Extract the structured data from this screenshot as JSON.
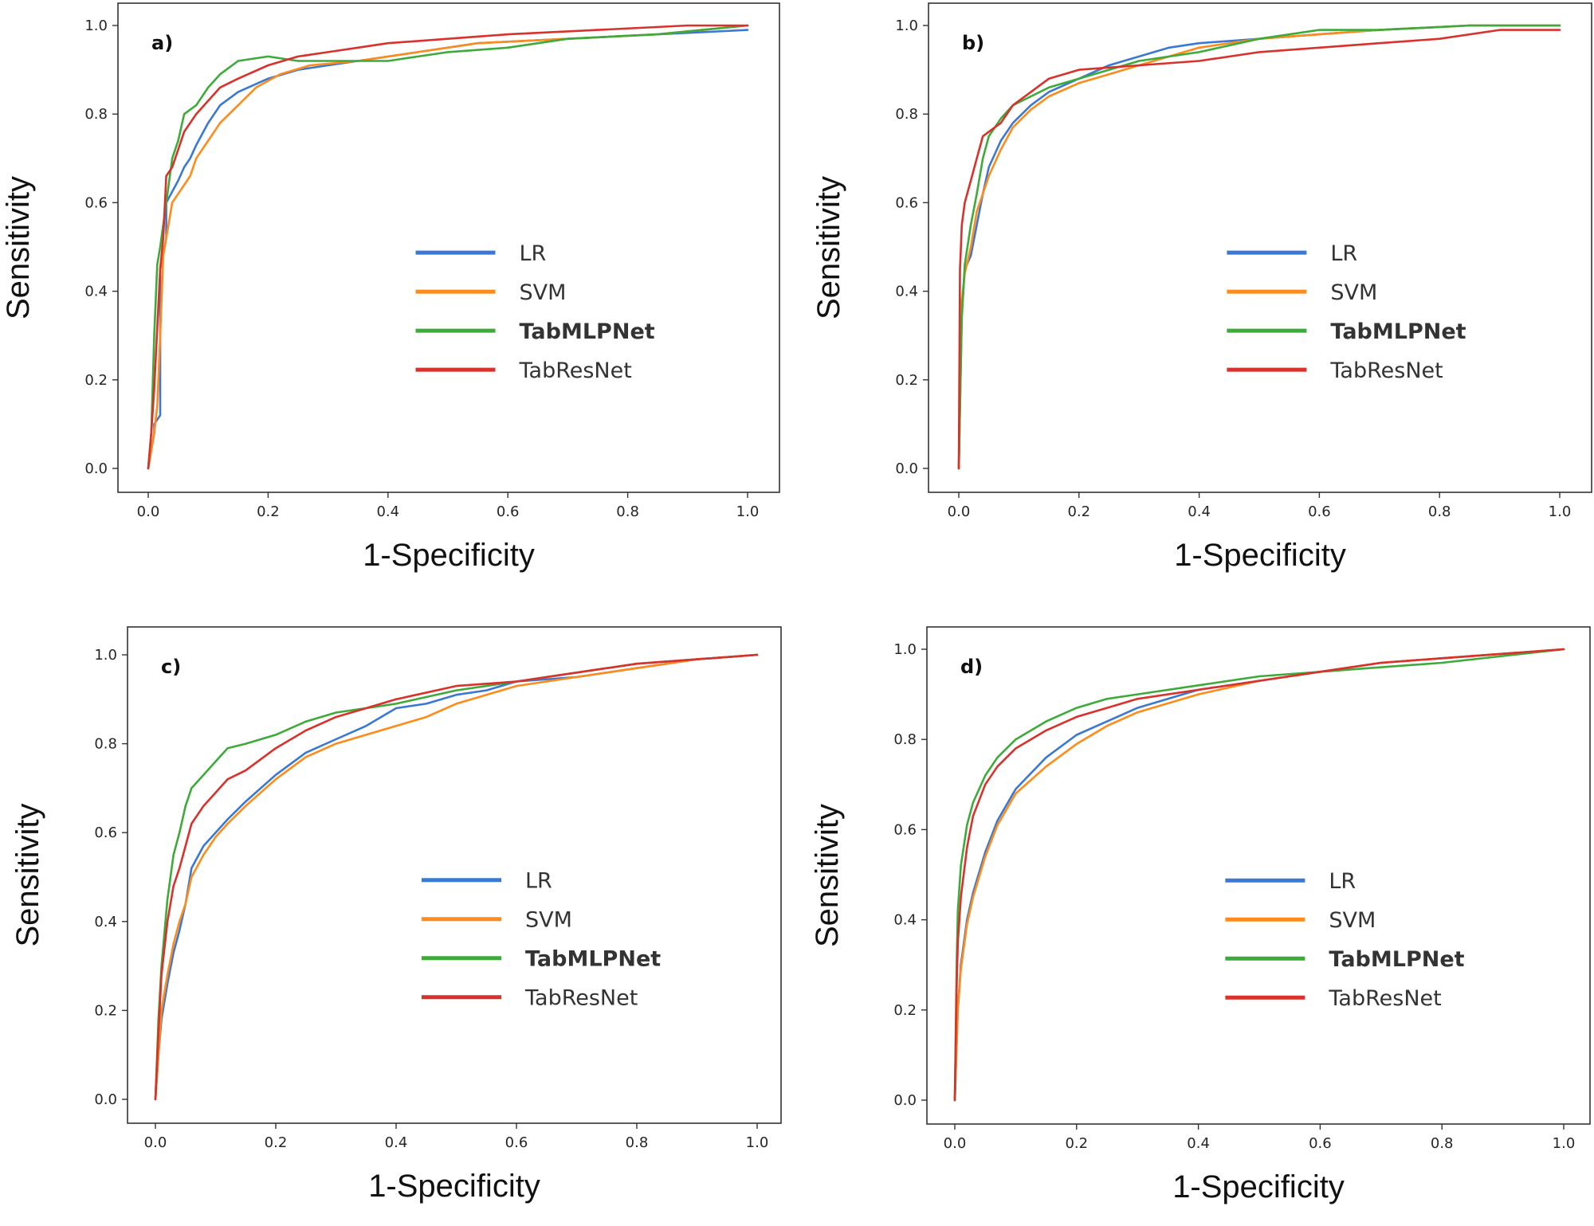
{
  "colors": {
    "LR": "#3a78d4",
    "SVM": "#ff8c1a",
    "TabMLPNet": "#3daa3a",
    "TabResNet": "#d9312b"
  },
  "chart_data": [
    {
      "type": "line",
      "panel_label": "a)",
      "xlabel": "1-Specificity",
      "ylabel": "Sensitivity",
      "xlim": [
        0.0,
        1.0
      ],
      "ylim": [
        0.0,
        1.0
      ],
      "xticks": [
        "0.0",
        "0.2",
        "0.4",
        "0.6",
        "0.8",
        "1.0"
      ],
      "yticks": [
        "0.0",
        "0.2",
        "0.4",
        "0.6",
        "0.8",
        "1.0"
      ],
      "grid": false,
      "legend_position": "lower-right",
      "series": [
        {
          "name": "LR",
          "color_key": "LR",
          "bold": false,
          "x": [
            0,
            0.01,
            0.01,
            0.02,
            0.02,
            0.03,
            0.03,
            0.05,
            0.06,
            0.07,
            0.08,
            0.1,
            0.12,
            0.15,
            0.2,
            0.25,
            0.3,
            0.35,
            0.45,
            0.55,
            0.7,
            0.85,
            1.0
          ],
          "y": [
            0,
            0.08,
            0.1,
            0.12,
            0.45,
            0.52,
            0.6,
            0.65,
            0.68,
            0.7,
            0.73,
            0.78,
            0.82,
            0.85,
            0.88,
            0.9,
            0.91,
            0.92,
            0.94,
            0.96,
            0.97,
            0.98,
            0.99
          ]
        },
        {
          "name": "SVM",
          "color_key": "SVM",
          "bold": false,
          "x": [
            0,
            0.01,
            0.015,
            0.02,
            0.025,
            0.03,
            0.04,
            0.05,
            0.07,
            0.08,
            0.1,
            0.12,
            0.15,
            0.18,
            0.22,
            0.27,
            0.35,
            0.45,
            0.55,
            0.7,
            0.85,
            1.0
          ],
          "y": [
            0,
            0.08,
            0.14,
            0.3,
            0.48,
            0.52,
            0.6,
            0.62,
            0.66,
            0.7,
            0.74,
            0.78,
            0.82,
            0.86,
            0.89,
            0.91,
            0.92,
            0.94,
            0.96,
            0.97,
            0.98,
            1.0
          ]
        },
        {
          "name": "TabMLPNet",
          "color_key": "TabMLPNet",
          "bold": true,
          "x": [
            0,
            0.005,
            0.01,
            0.015,
            0.02,
            0.03,
            0.04,
            0.05,
            0.06,
            0.08,
            0.1,
            0.12,
            0.15,
            0.2,
            0.25,
            0.3,
            0.4,
            0.5,
            0.6,
            0.7,
            0.85,
            1.0
          ],
          "y": [
            0,
            0.08,
            0.3,
            0.46,
            0.5,
            0.6,
            0.7,
            0.74,
            0.8,
            0.82,
            0.86,
            0.89,
            0.92,
            0.93,
            0.92,
            0.92,
            0.92,
            0.94,
            0.95,
            0.97,
            0.98,
            1.0
          ]
        },
        {
          "name": "TabResNet",
          "color_key": "TabResNet",
          "bold": false,
          "x": [
            0,
            0.005,
            0.01,
            0.02,
            0.025,
            0.03,
            0.04,
            0.05,
            0.06,
            0.08,
            0.1,
            0.12,
            0.15,
            0.2,
            0.25,
            0.3,
            0.35,
            0.4,
            0.5,
            0.6,
            0.75,
            0.9,
            1.0
          ],
          "y": [
            0,
            0.08,
            0.18,
            0.45,
            0.52,
            0.66,
            0.68,
            0.72,
            0.76,
            0.8,
            0.83,
            0.86,
            0.88,
            0.91,
            0.93,
            0.94,
            0.95,
            0.96,
            0.97,
            0.98,
            0.99,
            1.0,
            1.0
          ]
        }
      ]
    },
    {
      "type": "line",
      "panel_label": "b)",
      "xlabel": "1-Specificity",
      "ylabel": "Sensitivity",
      "xlim": [
        0.0,
        1.0
      ],
      "ylim": [
        0.0,
        1.0
      ],
      "xticks": [
        "0.0",
        "0.2",
        "0.4",
        "0.6",
        "0.8",
        "1.0"
      ],
      "yticks": [
        "0.0",
        "0.2",
        "0.4",
        "0.6",
        "0.8",
        "1.0"
      ],
      "grid": false,
      "legend_position": "lower-right",
      "series": [
        {
          "name": "LR",
          "color_key": "LR",
          "bold": false,
          "x": [
            0,
            0.005,
            0.01,
            0.02,
            0.03,
            0.04,
            0.05,
            0.07,
            0.09,
            0.12,
            0.15,
            0.2,
            0.25,
            0.3,
            0.35,
            0.4,
            0.5,
            0.6,
            0.7,
            0.85,
            1.0
          ],
          "y": [
            0,
            0.35,
            0.45,
            0.48,
            0.55,
            0.62,
            0.68,
            0.74,
            0.78,
            0.82,
            0.85,
            0.88,
            0.91,
            0.93,
            0.95,
            0.96,
            0.97,
            0.98,
            0.99,
            1.0,
            1.0
          ]
        },
        {
          "name": "SVM",
          "color_key": "SVM",
          "bold": false,
          "x": [
            0,
            0.005,
            0.01,
            0.02,
            0.03,
            0.04,
            0.05,
            0.07,
            0.09,
            0.12,
            0.15,
            0.2,
            0.25,
            0.3,
            0.35,
            0.4,
            0.5,
            0.6,
            0.7,
            0.85,
            1.0
          ],
          "y": [
            0,
            0.38,
            0.44,
            0.5,
            0.58,
            0.62,
            0.66,
            0.72,
            0.77,
            0.81,
            0.84,
            0.87,
            0.89,
            0.91,
            0.93,
            0.95,
            0.97,
            0.98,
            0.99,
            1.0,
            1.0
          ]
        },
        {
          "name": "TabMLPNet",
          "color_key": "TabMLPNet",
          "bold": true,
          "x": [
            0,
            0.005,
            0.01,
            0.02,
            0.03,
            0.04,
            0.05,
            0.07,
            0.09,
            0.12,
            0.15,
            0.2,
            0.25,
            0.3,
            0.4,
            0.5,
            0.6,
            0.7,
            0.85,
            1.0
          ],
          "y": [
            0,
            0.34,
            0.46,
            0.55,
            0.62,
            0.7,
            0.75,
            0.79,
            0.82,
            0.84,
            0.86,
            0.88,
            0.9,
            0.92,
            0.94,
            0.97,
            0.99,
            0.99,
            1.0,
            1.0
          ]
        },
        {
          "name": "TabResNet",
          "color_key": "TabResNet",
          "bold": false,
          "x": [
            0,
            0.002,
            0.005,
            0.01,
            0.02,
            0.03,
            0.04,
            0.05,
            0.07,
            0.09,
            0.12,
            0.15,
            0.2,
            0.3,
            0.4,
            0.5,
            0.6,
            0.7,
            0.8,
            0.9,
            1.0
          ],
          "y": [
            0,
            0.45,
            0.55,
            0.6,
            0.65,
            0.7,
            0.75,
            0.76,
            0.78,
            0.82,
            0.85,
            0.88,
            0.9,
            0.91,
            0.92,
            0.94,
            0.95,
            0.96,
            0.97,
            0.99,
            0.99
          ]
        }
      ]
    },
    {
      "type": "line",
      "panel_label": "c)",
      "xlabel": "1-Specificity",
      "ylabel": "Sensitivity",
      "xlim": [
        0.0,
        1.0
      ],
      "ylim": [
        0.0,
        1.0
      ],
      "xticks": [
        "0.0",
        "0.2",
        "0.4",
        "0.6",
        "0.8",
        "1.0"
      ],
      "yticks": [
        "0.0",
        "0.2",
        "0.4",
        "0.6",
        "0.8",
        "1.0"
      ],
      "grid": false,
      "legend_position": "lower-right",
      "series": [
        {
          "name": "LR",
          "color_key": "LR",
          "bold": false,
          "x": [
            0,
            0.005,
            0.01,
            0.02,
            0.03,
            0.04,
            0.05,
            0.06,
            0.08,
            0.1,
            0.12,
            0.15,
            0.2,
            0.25,
            0.3,
            0.35,
            0.4,
            0.45,
            0.5,
            0.55,
            0.6,
            0.7,
            0.8,
            0.9,
            1.0
          ],
          "y": [
            0,
            0.1,
            0.18,
            0.26,
            0.33,
            0.38,
            0.44,
            0.52,
            0.57,
            0.6,
            0.63,
            0.67,
            0.73,
            0.78,
            0.81,
            0.84,
            0.88,
            0.89,
            0.91,
            0.92,
            0.94,
            0.95,
            0.97,
            0.99,
            1.0
          ]
        },
        {
          "name": "SVM",
          "color_key": "SVM",
          "bold": false,
          "x": [
            0,
            0.005,
            0.01,
            0.02,
            0.03,
            0.04,
            0.05,
            0.06,
            0.08,
            0.1,
            0.12,
            0.15,
            0.2,
            0.25,
            0.3,
            0.35,
            0.4,
            0.45,
            0.5,
            0.55,
            0.6,
            0.7,
            0.8,
            0.9,
            1.0
          ],
          "y": [
            0,
            0.1,
            0.2,
            0.28,
            0.35,
            0.4,
            0.44,
            0.5,
            0.55,
            0.59,
            0.62,
            0.66,
            0.72,
            0.77,
            0.8,
            0.82,
            0.84,
            0.86,
            0.89,
            0.91,
            0.93,
            0.95,
            0.97,
            0.99,
            1.0
          ]
        },
        {
          "name": "TabMLPNet",
          "color_key": "TabMLPNet",
          "bold": true,
          "x": [
            0,
            0.005,
            0.01,
            0.02,
            0.03,
            0.04,
            0.05,
            0.06,
            0.08,
            0.1,
            0.12,
            0.15,
            0.2,
            0.25,
            0.3,
            0.35,
            0.4,
            0.5,
            0.6,
            0.7,
            0.8,
            0.9,
            1.0
          ],
          "y": [
            0,
            0.18,
            0.3,
            0.45,
            0.55,
            0.6,
            0.66,
            0.7,
            0.73,
            0.76,
            0.79,
            0.8,
            0.82,
            0.85,
            0.87,
            0.88,
            0.89,
            0.92,
            0.94,
            0.96,
            0.98,
            0.99,
            1.0
          ]
        },
        {
          "name": "TabResNet",
          "color_key": "TabResNet",
          "bold": false,
          "x": [
            0,
            0.005,
            0.01,
            0.02,
            0.03,
            0.04,
            0.05,
            0.06,
            0.08,
            0.1,
            0.12,
            0.15,
            0.2,
            0.25,
            0.3,
            0.35,
            0.4,
            0.5,
            0.6,
            0.7,
            0.8,
            0.9,
            1.0
          ],
          "y": [
            0,
            0.15,
            0.28,
            0.4,
            0.48,
            0.52,
            0.57,
            0.62,
            0.66,
            0.69,
            0.72,
            0.74,
            0.79,
            0.83,
            0.86,
            0.88,
            0.9,
            0.93,
            0.94,
            0.96,
            0.98,
            0.99,
            1.0
          ]
        }
      ]
    },
    {
      "type": "line",
      "panel_label": "d)",
      "xlabel": "1-Specificity",
      "ylabel": "Sensitivity",
      "xlim": [
        0.0,
        1.0
      ],
      "ylim": [
        0.0,
        1.0
      ],
      "xticks": [
        "0.0",
        "0.2",
        "0.4",
        "0.6",
        "0.8",
        "1.0"
      ],
      "yticks": [
        "0.0",
        "0.2",
        "0.4",
        "0.6",
        "0.8",
        "1.0"
      ],
      "grid": false,
      "legend_position": "lower-right",
      "series": [
        {
          "name": "LR",
          "color_key": "LR",
          "bold": false,
          "x": [
            0,
            0.005,
            0.01,
            0.02,
            0.03,
            0.05,
            0.07,
            0.1,
            0.15,
            0.2,
            0.25,
            0.3,
            0.4,
            0.5,
            0.6,
            0.7,
            0.8,
            0.9,
            1.0
          ],
          "y": [
            0,
            0.2,
            0.3,
            0.4,
            0.46,
            0.55,
            0.62,
            0.69,
            0.76,
            0.81,
            0.84,
            0.87,
            0.91,
            0.93,
            0.95,
            0.97,
            0.98,
            0.99,
            1.0
          ]
        },
        {
          "name": "SVM",
          "color_key": "SVM",
          "bold": false,
          "x": [
            0,
            0.005,
            0.01,
            0.02,
            0.03,
            0.05,
            0.07,
            0.1,
            0.15,
            0.2,
            0.25,
            0.3,
            0.4,
            0.5,
            0.6,
            0.7,
            0.8,
            0.9,
            1.0
          ],
          "y": [
            0,
            0.2,
            0.29,
            0.39,
            0.45,
            0.54,
            0.61,
            0.68,
            0.74,
            0.79,
            0.83,
            0.86,
            0.9,
            0.93,
            0.95,
            0.97,
            0.98,
            0.99,
            1.0
          ]
        },
        {
          "name": "TabMLPNet",
          "color_key": "TabMLPNet",
          "bold": true,
          "x": [
            0,
            0.003,
            0.005,
            0.01,
            0.02,
            0.03,
            0.05,
            0.07,
            0.1,
            0.15,
            0.2,
            0.25,
            0.3,
            0.4,
            0.5,
            0.6,
            0.7,
            0.8,
            0.9,
            1.0
          ],
          "y": [
            0,
            0.3,
            0.42,
            0.52,
            0.61,
            0.66,
            0.72,
            0.76,
            0.8,
            0.84,
            0.87,
            0.89,
            0.9,
            0.92,
            0.94,
            0.95,
            0.96,
            0.97,
            0.985,
            1.0
          ]
        },
        {
          "name": "TabResNet",
          "color_key": "TabResNet",
          "bold": false,
          "x": [
            0,
            0.003,
            0.005,
            0.01,
            0.02,
            0.03,
            0.05,
            0.07,
            0.1,
            0.15,
            0.2,
            0.25,
            0.3,
            0.4,
            0.5,
            0.6,
            0.7,
            0.8,
            0.9,
            1.0
          ],
          "y": [
            0,
            0.25,
            0.35,
            0.45,
            0.56,
            0.63,
            0.7,
            0.74,
            0.78,
            0.82,
            0.85,
            0.87,
            0.89,
            0.91,
            0.93,
            0.95,
            0.97,
            0.98,
            0.99,
            1.0
          ]
        }
      ]
    }
  ]
}
